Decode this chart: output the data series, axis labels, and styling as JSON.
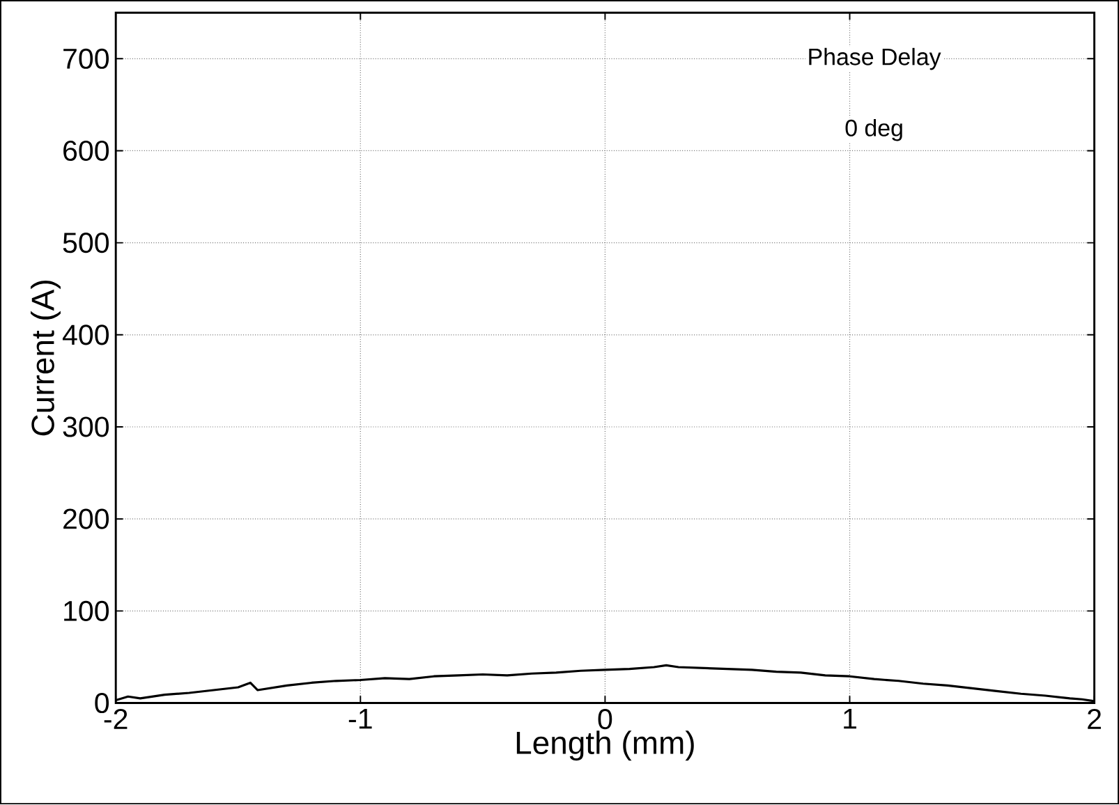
{
  "chart_data": {
    "type": "line",
    "xlabel": "Length (mm)",
    "ylabel": "Current (A)",
    "annotations": [
      "Phase Delay",
      "0 deg"
    ],
    "x": [
      -2,
      -1.95,
      -1.9,
      -1.8,
      -1.7,
      -1.6,
      -1.5,
      -1.45,
      -1.42,
      -1.3,
      -1.2,
      -1.1,
      -1.0,
      -0.9,
      -0.8,
      -0.7,
      -0.6,
      -0.5,
      -0.4,
      -0.3,
      -0.2,
      -0.1,
      0,
      0.1,
      0.2,
      0.25,
      0.3,
      0.4,
      0.5,
      0.6,
      0.7,
      0.8,
      0.9,
      1.0,
      1.1,
      1.2,
      1.3,
      1.4,
      1.5,
      1.6,
      1.7,
      1.8,
      1.9,
      1.95,
      2
    ],
    "series": [
      {
        "color": "#000000",
        "values": [
          3,
          7,
          5,
          9,
          11,
          14,
          17,
          22,
          14,
          19,
          22,
          24,
          25,
          27,
          26,
          29,
          30,
          31,
          30,
          32,
          33,
          35,
          36,
          37,
          39,
          41,
          39,
          38,
          37,
          36,
          34,
          33,
          30,
          29,
          26,
          24,
          21,
          19,
          16,
          13,
          10,
          8,
          5,
          4,
          2
        ]
      }
    ],
    "xlim": [
      -2,
      2
    ],
    "ylim": [
      0,
      750
    ],
    "xticks": [
      -2,
      -1,
      0,
      1,
      2
    ],
    "yticks": [
      0,
      100,
      200,
      300,
      400,
      500,
      600,
      700
    ],
    "grid": true,
    "line_style": "solid",
    "marker": "none"
  }
}
